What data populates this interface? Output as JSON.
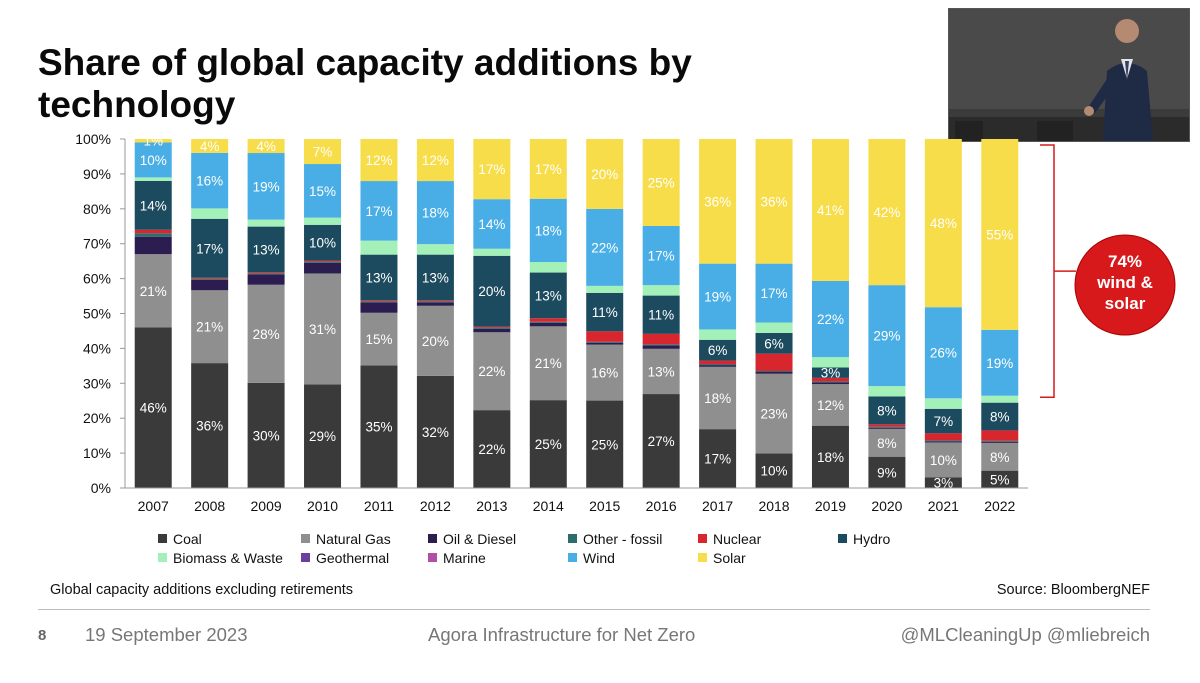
{
  "slide": {
    "title": "Share of global capacity additions by technology",
    "note": "Global capacity additions excluding retirements",
    "source": "Source: BloombergNEF",
    "page_number": "8",
    "date": "19 September 2023",
    "event": "Agora Infrastructure for Net Zero",
    "handles": "@MLCleaningUp @mliebreich"
  },
  "callout": {
    "line1": "74%",
    "line2": "wind &",
    "line3": "solar",
    "color": "#d7191c"
  },
  "legend": [
    {
      "key": "coal",
      "label": "Coal",
      "color": "#3a3a3a"
    },
    {
      "key": "gas",
      "label": "Natural Gas",
      "color": "#8f8f8f"
    },
    {
      "key": "oil",
      "label": "Oil & Diesel",
      "color": "#2b1d4f"
    },
    {
      "key": "otherfossil",
      "label": "Other - fossil",
      "color": "#2e6b6b"
    },
    {
      "key": "nuclear",
      "label": "Nuclear",
      "color": "#d8262e"
    },
    {
      "key": "hydro",
      "label": "Hydro",
      "color": "#1c4a5e"
    },
    {
      "key": "biomass",
      "label": "Biomass & Waste",
      "color": "#a3f0b8"
    },
    {
      "key": "geothermal",
      "label": "Geothermal",
      "color": "#6a3f9f"
    },
    {
      "key": "marine",
      "label": "Marine",
      "color": "#b04fa8"
    },
    {
      "key": "wind",
      "label": "Wind",
      "color": "#49aee6"
    },
    {
      "key": "solar",
      "label": "Solar",
      "color": "#f8dd4a"
    }
  ],
  "chart_data": {
    "type": "bar",
    "stacked": true,
    "title": "Share of global capacity additions by technology",
    "xlabel": "",
    "ylabel": "",
    "ylim": [
      0,
      100
    ],
    "yticks": [
      "0%",
      "10%",
      "20%",
      "30%",
      "40%",
      "50%",
      "60%",
      "70%",
      "80%",
      "90%",
      "100%"
    ],
    "categories": [
      "2007",
      "2008",
      "2009",
      "2010",
      "2011",
      "2012",
      "2013",
      "2014",
      "2015",
      "2016",
      "2017",
      "2018",
      "2019",
      "2020",
      "2021",
      "2022"
    ],
    "series": [
      {
        "name": "Coal",
        "key": "coal",
        "values": [
          46,
          36,
          30,
          29,
          35,
          32,
          22,
          25,
          25,
          27,
          17,
          10,
          18,
          9,
          3,
          5
        ],
        "labels": [
          "46%",
          "36%",
          "30%",
          "29%",
          "35%",
          "32%",
          "22%",
          "25%",
          "25%",
          "27%",
          "17%",
          "10%",
          "18%",
          "9%",
          "3%",
          "5%"
        ]
      },
      {
        "name": "Natural Gas",
        "key": "gas",
        "values": [
          21,
          21,
          28,
          31,
          15,
          20,
          22,
          21,
          16,
          13,
          18,
          23,
          12,
          8,
          10,
          8
        ],
        "labels": [
          "21%",
          "21%",
          "28%",
          "31%",
          "15%",
          "20%",
          "22%",
          "21%",
          "16%",
          "13%",
          "18%",
          "23%",
          "12%",
          "8%",
          "10%",
          "8%"
        ]
      },
      {
        "name": "Oil & Diesel",
        "key": "oil",
        "values": [
          5,
          3,
          3,
          3,
          3,
          1,
          1,
          1,
          0.5,
          1,
          0.5,
          0.5,
          0.5,
          0.3,
          0.3,
          0.3
        ]
      },
      {
        "name": "Other - fossil",
        "key": "otherfossil",
        "values": [
          1,
          0.3,
          0.3,
          0.3,
          0.3,
          0.3,
          0.3,
          0.3,
          0.3,
          0.3,
          0.3,
          0.3,
          0.3,
          0.3,
          0.3,
          0.3
        ]
      },
      {
        "name": "Nuclear",
        "key": "nuclear",
        "values": [
          1,
          0.3,
          0.3,
          0.3,
          0.3,
          0.3,
          0.3,
          1,
          3,
          3,
          1,
          5,
          1,
          0.7,
          2,
          3
        ]
      },
      {
        "name": "Hydro",
        "key": "hydro",
        "values": [
          14,
          17,
          13,
          10,
          13,
          13,
          20,
          13,
          11,
          11,
          6,
          6,
          3,
          8,
          7,
          8
        ],
        "labels": [
          "14%",
          "17%",
          "13%",
          "10%",
          "13%",
          "13%",
          "20%",
          "13%",
          "11%",
          "11%",
          "6%",
          "6%",
          "3%",
          "8%",
          "7%",
          "8%"
        ]
      },
      {
        "name": "Biomass & Waste",
        "key": "biomass",
        "values": [
          1,
          3,
          2,
          2,
          4,
          3,
          2,
          3,
          2,
          3,
          3,
          3,
          3,
          3,
          3,
          2
        ]
      },
      {
        "name": "Geothermal",
        "key": "geothermal",
        "values": [
          0,
          0,
          0,
          0,
          0,
          0,
          0,
          0,
          0,
          0,
          0,
          0,
          0,
          0,
          0,
          0
        ]
      },
      {
        "name": "Marine",
        "key": "marine",
        "values": [
          0,
          0,
          0,
          0,
          0,
          0,
          0,
          0,
          0,
          0,
          0,
          0,
          0,
          0,
          0,
          0
        ]
      },
      {
        "name": "Wind",
        "key": "wind",
        "values": [
          10,
          16,
          19,
          15,
          17,
          18,
          14,
          18,
          22,
          17,
          19,
          17,
          22,
          29,
          26,
          19
        ],
        "labels": [
          "10%",
          "16%",
          "19%",
          "15%",
          "17%",
          "18%",
          "14%",
          "18%",
          "22%",
          "17%",
          "19%",
          "17%",
          "22%",
          "29%",
          "26%",
          "19%"
        ]
      },
      {
        "name": "Solar",
        "key": "solar",
        "values": [
          1,
          4,
          4,
          7,
          12,
          12,
          17,
          17,
          20,
          25,
          36,
          36,
          41,
          42,
          48,
          55
        ],
        "labels": [
          "1%",
          "4%",
          "4%",
          "7%",
          "12%",
          "12%",
          "17%",
          "17%",
          "20%",
          "25%",
          "36%",
          "36%",
          "41%",
          "42%",
          "48%",
          "55%"
        ]
      }
    ],
    "annotations": [
      "74% wind & solar"
    ]
  }
}
